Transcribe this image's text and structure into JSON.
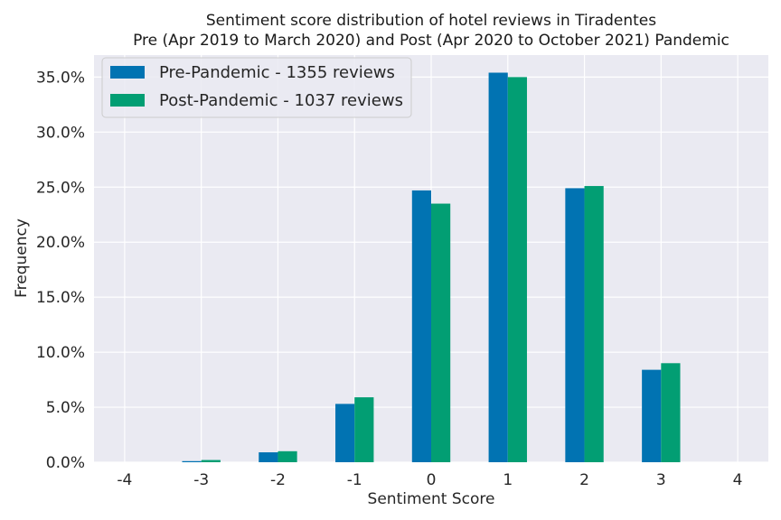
{
  "chart_data": {
    "type": "bar",
    "title": "Sentiment score distribution of hotel reviews in Tiradentes",
    "subtitle": "Pre (Apr 2019 to March 2020) and Post (Apr 2020 to October 2021) Pandemic",
    "xlabel": "Sentiment Score",
    "ylabel": "Frequency",
    "categories": [
      "-4",
      "-3",
      "-2",
      "-1",
      "0",
      "1",
      "2",
      "3",
      "4"
    ],
    "x_values": [
      -4,
      -3,
      -2,
      -1,
      0,
      1,
      2,
      3,
      4
    ],
    "xlim": [
      -4.4,
      4.4
    ],
    "ylim": [
      0,
      0.37
    ],
    "yticks": [
      0,
      0.05,
      0.1,
      0.15,
      0.2,
      0.25,
      0.3,
      0.35
    ],
    "ytick_labels": [
      "0.0%",
      "5.0%",
      "10.0%",
      "15.0%",
      "20.0%",
      "25.0%",
      "30.0%",
      "35.0%"
    ],
    "grid": true,
    "legend_position": "top-left",
    "background": "#eaeaf2",
    "series": [
      {
        "name": "Pre-Pandemic - 1355 reviews",
        "color": "#0173b2",
        "values": [
          0.0,
          0.001,
          0.009,
          0.053,
          0.247,
          0.354,
          0.249,
          0.084,
          0.0
        ]
      },
      {
        "name": "Post-Pandemic - 1037 reviews",
        "color": "#029e73",
        "values": [
          0.0,
          0.002,
          0.01,
          0.059,
          0.235,
          0.35,
          0.251,
          0.09,
          0.0
        ]
      }
    ]
  }
}
